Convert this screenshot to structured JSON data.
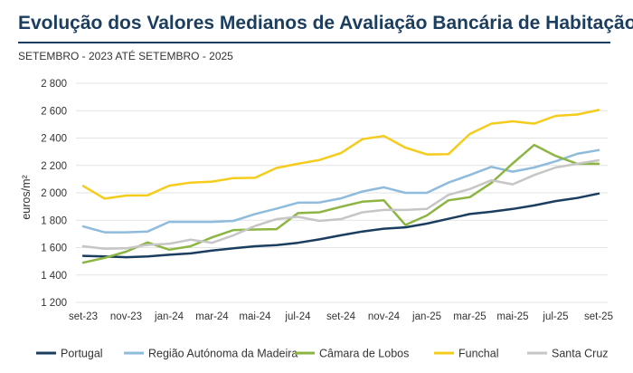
{
  "header": {
    "title": "Evolução dos Valores Medianos de Avaliação Bancária de Habitação",
    "subtitle": "SETEMBRO - 2023 ATÉ SETEMBRO - 2025"
  },
  "chart_data": {
    "type": "line",
    "title": "Evolução dos Valores Medianos de Avaliação Bancária de Habitação",
    "subtitle": "SETEMBRO - 2023 ATÉ SETEMBRO - 2025",
    "xlabel": "",
    "ylabel": "euros/m²",
    "ylim": [
      1200,
      2800
    ],
    "yticks": [
      1200,
      1400,
      1600,
      1800,
      2000,
      2200,
      2400,
      2600,
      2800
    ],
    "ytick_labels": [
      "1 200",
      "1 400",
      "1 600",
      "1 800",
      "2 000",
      "2 200",
      "2 400",
      "2 600",
      "2 800"
    ],
    "x": [
      "set-23",
      "out-23",
      "nov-23",
      "dez-23",
      "jan-24",
      "fev-24",
      "mar-24",
      "abr-24",
      "mai-24",
      "jun-24",
      "jul-24",
      "ago-24",
      "set-24",
      "out-24",
      "nov-24",
      "dez-24",
      "jan-25",
      "fev-25",
      "mar-25",
      "abr-25",
      "mai-25",
      "jun-25",
      "jul-25",
      "ago-25",
      "set-25"
    ],
    "xtick_labels": [
      "set-23",
      "nov-23",
      "jan-24",
      "mar-24",
      "mai-24",
      "jul-24",
      "set-24",
      "nov-24",
      "jan-25",
      "mar-25",
      "mai-25",
      "jul-25",
      "set-25"
    ],
    "grid": true,
    "legend_position": "bottom",
    "series": [
      {
        "name": "Portugal",
        "color": "#1b3d5f",
        "values": [
          1540,
          1535,
          1530,
          1535,
          1548,
          1558,
          1578,
          1595,
          1610,
          1618,
          1635,
          1660,
          1690,
          1718,
          1738,
          1748,
          1775,
          1810,
          1845,
          1862,
          1882,
          1908,
          1940,
          1962,
          1995
        ]
      },
      {
        "name": "Região Autónoma da Madeira",
        "color": "#8fbbdc",
        "values": [
          1755,
          1712,
          1712,
          1718,
          1788,
          1788,
          1788,
          1795,
          1845,
          1885,
          1928,
          1930,
          1960,
          2010,
          2040,
          2000,
          2000,
          2075,
          2130,
          2190,
          2155,
          2185,
          2230,
          2285,
          2312
        ]
      },
      {
        "name": "Câmara de Lobos",
        "color": "#8db544",
        "values": [
          1490,
          1525,
          1570,
          1638,
          1585,
          1610,
          1675,
          1728,
          1732,
          1735,
          1852,
          1858,
          1898,
          1935,
          1945,
          1765,
          1835,
          1945,
          1968,
          2072,
          2215,
          2350,
          2270,
          2212,
          2212
        ]
      },
      {
        "name": "Funchal",
        "color": "#f5cc1c",
        "values": [
          2050,
          1958,
          1980,
          1982,
          2052,
          2075,
          2082,
          2108,
          2110,
          2182,
          2212,
          2240,
          2290,
          2392,
          2415,
          2330,
          2280,
          2282,
          2430,
          2505,
          2522,
          2505,
          2562,
          2572,
          2605
        ]
      },
      {
        "name": "Santa Cruz",
        "color": "#c6c6c6",
        "values": [
          1610,
          1592,
          1595,
          1620,
          1628,
          1658,
          1635,
          1690,
          1758,
          1808,
          1825,
          1795,
          1808,
          1858,
          1875,
          1875,
          1882,
          1985,
          2028,
          2092,
          2062,
          2130,
          2185,
          2212,
          2238
        ]
      }
    ]
  }
}
